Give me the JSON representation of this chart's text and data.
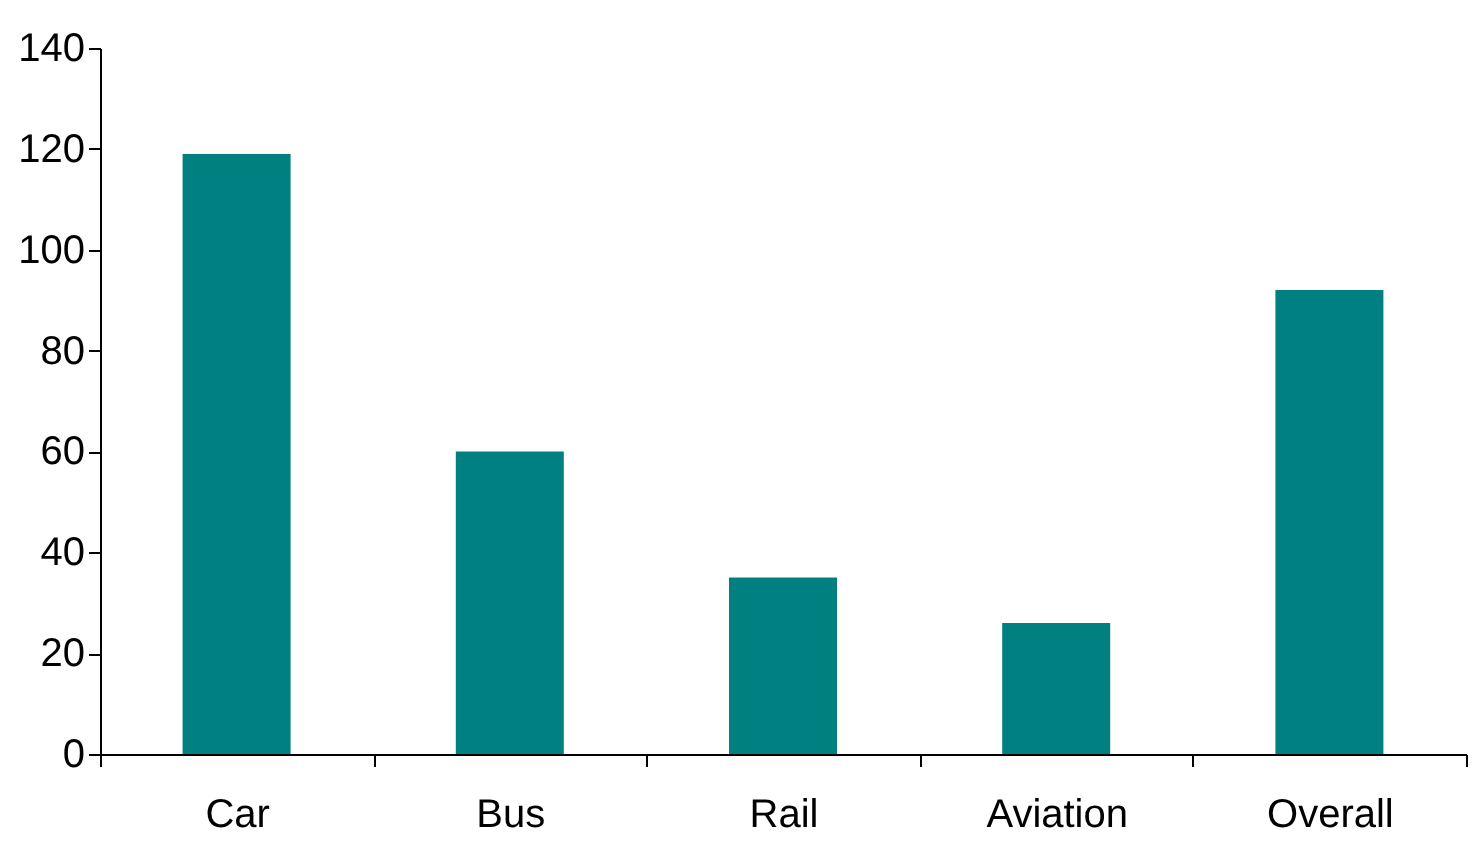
{
  "chart_data": {
    "type": "bar",
    "categories": [
      "Car",
      "Bus",
      "Rail",
      "Aviation",
      "Overall"
    ],
    "values": [
      119,
      60,
      35,
      26,
      92
    ],
    "color": "#008080",
    "ylim": [
      0,
      140
    ],
    "yticks": [
      0,
      20,
      40,
      60,
      80,
      100,
      120,
      140
    ],
    "grid": false
  }
}
